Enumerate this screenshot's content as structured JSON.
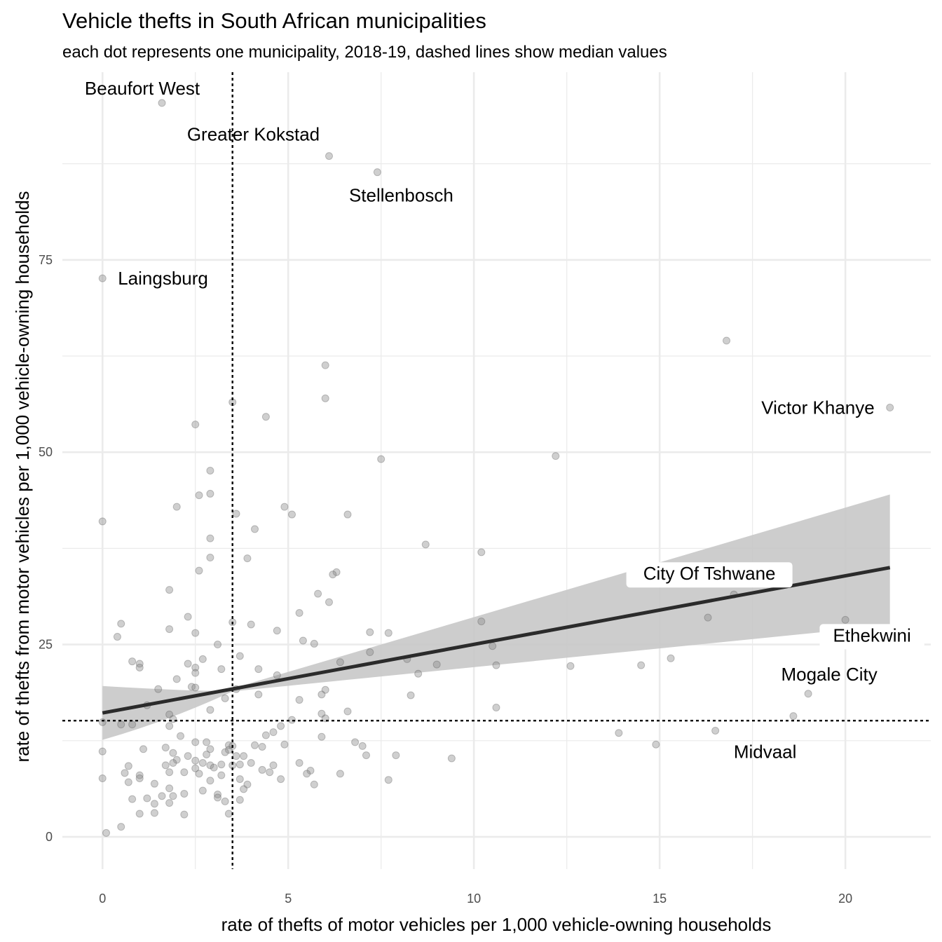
{
  "chart_data": {
    "type": "scatter",
    "title": "Vehicle thefts in South African municipalities",
    "subtitle": "each dot represents one municipality, 2018-19, dashed lines show median values",
    "xlabel": "rate of thefts of motor vehicles per 1,000 vehicle-owning households",
    "ylabel": "rate of thefts from motor vehicles per 1,000 vehicle-owning households",
    "xlim": [
      -1.08,
      22.3
    ],
    "ylim": [
      -4.2,
      99.4
    ],
    "x_ticks": [
      0,
      5,
      10,
      15,
      20
    ],
    "y_ticks": [
      0,
      25,
      50,
      75
    ],
    "x_tick_labels": [
      "0",
      "5",
      "10",
      "15",
      "20"
    ],
    "y_tick_labels": [
      "0",
      "25",
      "50",
      "75"
    ],
    "grid": true,
    "median_x": 3.5,
    "median_y": 15.1,
    "trend_line": {
      "x": [
        0,
        21.2
      ],
      "y": [
        16.1,
        35.0
      ],
      "ci_lower_at_start": 12.6,
      "ci_upper_at_start": 19.6,
      "ci_lower_at_end": 27.5,
      "ci_upper_at_end": 44.5
    },
    "colors": {
      "points": "#888888",
      "trend": "#2b2b2b",
      "ribbon": "#c8c8c8",
      "grid": "#ebebeb",
      "median": "#000000"
    },
    "annotations": [
      {
        "text": "Beaufort West",
        "x": 1.6,
        "y": 95.4
      },
      {
        "text": "Greater Kokstad",
        "x": 6.1,
        "y": 88.5
      },
      {
        "text": "Stellenbosch",
        "x": 7.4,
        "y": 86.4
      },
      {
        "text": "Laingsburg",
        "x": 0.0,
        "y": 72.6
      },
      {
        "text": "Victor Khanye",
        "x": 21.2,
        "y": 55.8
      },
      {
        "text": "City Of Tshwane",
        "x": 17.0,
        "y": 31.5
      },
      {
        "text": "Ethekwini",
        "x": 20.0,
        "y": 28.2
      },
      {
        "text": "Mogale City",
        "x": 19.0,
        "y": 18.6
      },
      {
        "text": "Midvaal",
        "x": 16.5,
        "y": 13.8
      }
    ],
    "points": [
      [
        1.6,
        95.4
      ],
      [
        6.1,
        88.5
      ],
      [
        7.4,
        86.4
      ],
      [
        0.0,
        72.6
      ],
      [
        16.8,
        64.5
      ],
      [
        21.2,
        55.8
      ],
      [
        6.0,
        61.3
      ],
      [
        6.0,
        57.0
      ],
      [
        3.5,
        56.5
      ],
      [
        4.4,
        54.6
      ],
      [
        2.5,
        53.6
      ],
      [
        7.5,
        49.1
      ],
      [
        12.2,
        49.5
      ],
      [
        2.9,
        47.6
      ],
      [
        2.0,
        42.9
      ],
      [
        2.9,
        44.6
      ],
      [
        2.6,
        44.4
      ],
      [
        4.9,
        42.9
      ],
      [
        5.1,
        41.9
      ],
      [
        3.6,
        42.0
      ],
      [
        6.6,
        41.9
      ],
      [
        0.0,
        41.0
      ],
      [
        4.1,
        40.0
      ],
      [
        2.9,
        38.8
      ],
      [
        8.7,
        38.0
      ],
      [
        10.2,
        37.0
      ],
      [
        2.9,
        36.3
      ],
      [
        3.9,
        36.2
      ],
      [
        2.6,
        34.6
      ],
      [
        6.3,
        34.4
      ],
      [
        6.2,
        34.1
      ],
      [
        1.8,
        32.1
      ],
      [
        5.8,
        31.6
      ],
      [
        17.0,
        31.5
      ],
      [
        6.1,
        30.5
      ],
      [
        5.3,
        29.1
      ],
      [
        2.3,
        28.6
      ],
      [
        16.3,
        28.5
      ],
      [
        20.0,
        28.2
      ],
      [
        10.2,
        28.0
      ],
      [
        3.5,
        27.9
      ],
      [
        4.0,
        27.6
      ],
      [
        0.5,
        27.7
      ],
      [
        1.8,
        27.0
      ],
      [
        4.7,
        26.8
      ],
      [
        7.2,
        26.6
      ],
      [
        7.7,
        26.5
      ],
      [
        2.5,
        26.5
      ],
      [
        0.4,
        26.0
      ],
      [
        5.4,
        25.5
      ],
      [
        5.7,
        25.1
      ],
      [
        3.1,
        25.0
      ],
      [
        10.5,
        24.8
      ],
      [
        7.2,
        24.0
      ],
      [
        3.7,
        23.5
      ],
      [
        8.2,
        23.1
      ],
      [
        2.7,
        23.1
      ],
      [
        0.8,
        22.8
      ],
      [
        2.3,
        22.5
      ],
      [
        6.4,
        22.7
      ],
      [
        9.0,
        22.4
      ],
      [
        10.6,
        22.3
      ],
      [
        12.6,
        22.2
      ],
      [
        14.5,
        22.3
      ],
      [
        1.0,
        22.5
      ],
      [
        1.0,
        22.0
      ],
      [
        2.5,
        22.0
      ],
      [
        3.2,
        21.8
      ],
      [
        4.2,
        21.8
      ],
      [
        2.5,
        21.3
      ],
      [
        4.7,
        21.0
      ],
      [
        8.5,
        21.2
      ],
      [
        15.3,
        23.2
      ],
      [
        2.0,
        20.5
      ],
      [
        2.4,
        19.5
      ],
      [
        2.5,
        19.4
      ],
      [
        3.6,
        19.2
      ],
      [
        1.5,
        19.2
      ],
      [
        6.0,
        19.1
      ],
      [
        4.2,
        18.5
      ],
      [
        5.9,
        18.5
      ],
      [
        19.0,
        18.6
      ],
      [
        8.3,
        18.4
      ],
      [
        3.3,
        18.0
      ],
      [
        5.3,
        17.8
      ],
      [
        1.2,
        17.1
      ],
      [
        10.6,
        16.8
      ],
      [
        2.9,
        16.5
      ],
      [
        6.6,
        16.3
      ],
      [
        1.8,
        15.9
      ],
      [
        5.9,
        16.0
      ],
      [
        6.0,
        15.4
      ],
      [
        1.9,
        15.3
      ],
      [
        18.6,
        15.7
      ],
      [
        5.1,
        15.2
      ],
      [
        0.0,
        14.9
      ],
      [
        0.5,
        14.6
      ],
      [
        0.8,
        14.6
      ],
      [
        1.8,
        14.4
      ],
      [
        4.8,
        14.4
      ],
      [
        16.5,
        13.8
      ],
      [
        13.9,
        13.5
      ],
      [
        4.6,
        13.6
      ],
      [
        4.4,
        13.2
      ],
      [
        2.1,
        13.1
      ],
      [
        5.9,
        13.0
      ],
      [
        6.8,
        12.3
      ],
      [
        2.5,
        12.3
      ],
      [
        2.8,
        12.3
      ],
      [
        4.1,
        11.9
      ],
      [
        3.4,
        11.9
      ],
      [
        3.5,
        11.8
      ],
      [
        14.9,
        12.0
      ],
      [
        7.0,
        11.8
      ],
      [
        4.9,
        12.0
      ],
      [
        1.7,
        11.6
      ],
      [
        4.3,
        11.7
      ],
      [
        3.4,
        11.3
      ],
      [
        2.9,
        11.4
      ],
      [
        1.1,
        11.4
      ],
      [
        3.3,
        11.0
      ],
      [
        0.0,
        11.1
      ],
      [
        1.9,
        10.9
      ],
      [
        2.8,
        10.7
      ],
      [
        3.6,
        10.5
      ],
      [
        3.8,
        10.5
      ],
      [
        7.1,
        10.6
      ],
      [
        7.9,
        10.6
      ],
      [
        2.3,
        10.5
      ],
      [
        9.4,
        10.2
      ],
      [
        2.0,
        10.0
      ],
      [
        2.5,
        9.9
      ],
      [
        2.7,
        9.6
      ],
      [
        1.9,
        9.6
      ],
      [
        4.0,
        9.6
      ],
      [
        3.2,
        9.4
      ],
      [
        3.5,
        9.3
      ],
      [
        5.3,
        9.6
      ],
      [
        4.6,
        9.3
      ],
      [
        1.7,
        9.3
      ],
      [
        3.7,
        9.4
      ],
      [
        0.7,
        9.2
      ],
      [
        2.9,
        9.3
      ],
      [
        3.0,
        9.0
      ],
      [
        2.5,
        8.9
      ],
      [
        5.6,
        8.6
      ],
      [
        6.4,
        8.2
      ],
      [
        4.3,
        8.7
      ],
      [
        4.5,
        8.4
      ],
      [
        1.8,
        8.4
      ],
      [
        2.2,
        8.4
      ],
      [
        3.2,
        8.0
      ],
      [
        5.5,
        8.2
      ],
      [
        2.6,
        8.2
      ],
      [
        0.6,
        8.3
      ],
      [
        1.0,
        8.0
      ],
      [
        4.8,
        7.5
      ],
      [
        3.7,
        7.5
      ],
      [
        0.0,
        7.6
      ],
      [
        1.0,
        7.6
      ],
      [
        7.7,
        7.4
      ],
      [
        2.9,
        7.3
      ],
      [
        0.7,
        7.1
      ],
      [
        1.4,
        6.9
      ],
      [
        3.9,
        6.8
      ],
      [
        5.7,
        6.8
      ],
      [
        1.8,
        6.3
      ],
      [
        3.8,
        6.2
      ],
      [
        2.7,
        6.0
      ],
      [
        2.2,
        5.6
      ],
      [
        1.9,
        5.3
      ],
      [
        1.6,
        5.3
      ],
      [
        3.1,
        5.5
      ],
      [
        3.1,
        5.1
      ],
      [
        0.8,
        4.9
      ],
      [
        1.2,
        5.0
      ],
      [
        3.3,
        4.6
      ],
      [
        3.7,
        4.8
      ],
      [
        1.8,
        4.4
      ],
      [
        1.4,
        4.3
      ],
      [
        1.4,
        3.1
      ],
      [
        2.2,
        2.9
      ],
      [
        3.4,
        3.0
      ],
      [
        1.0,
        3.0
      ],
      [
        0.5,
        1.3
      ],
      [
        0.1,
        0.5
      ]
    ]
  }
}
